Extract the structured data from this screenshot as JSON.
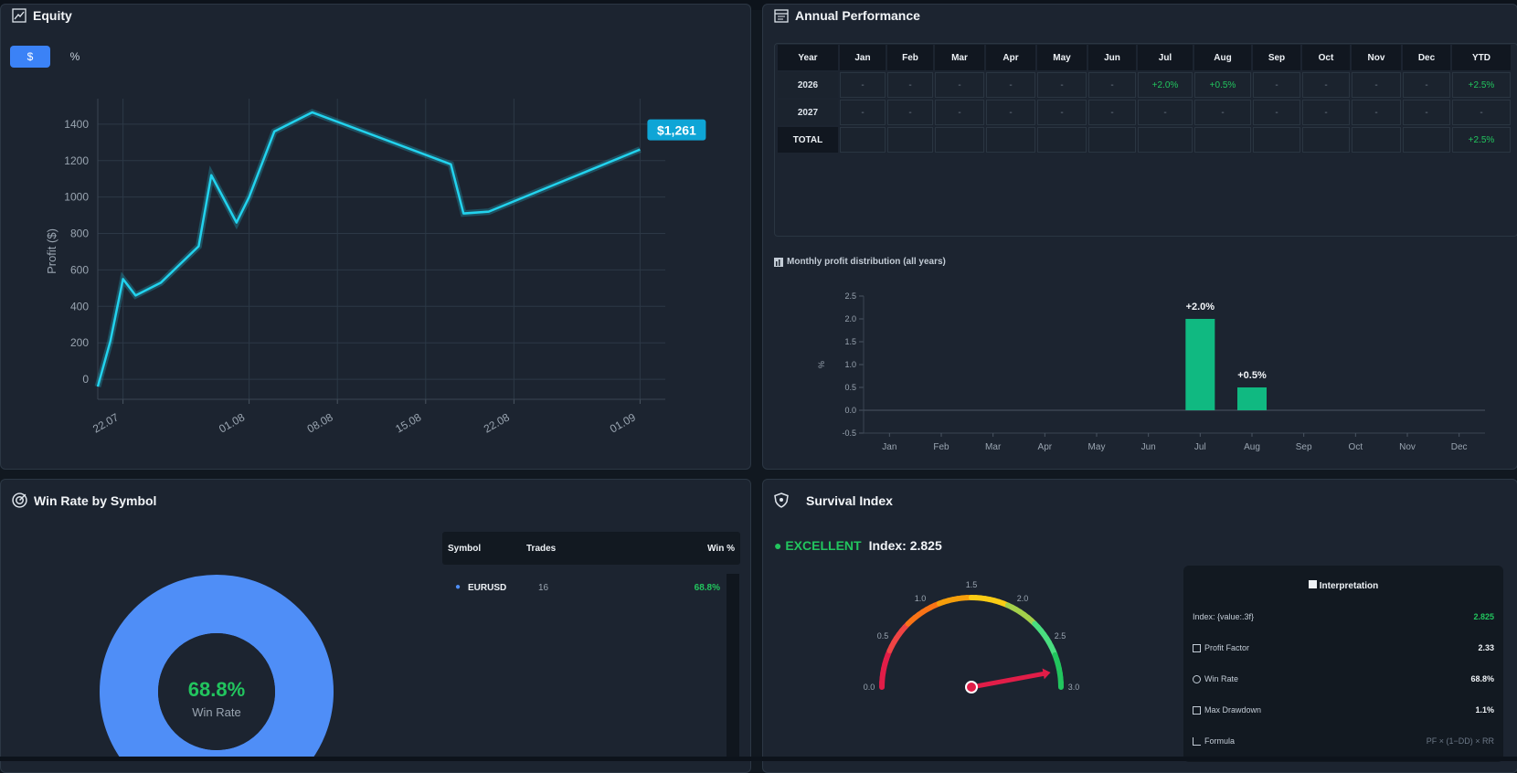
{
  "equity": {
    "title": "Equity",
    "toggle_dollar": "$",
    "toggle_percent": "%",
    "ylabel": "Profit ($)",
    "last_value_label": "$1,261"
  },
  "annual": {
    "title": "Annual Performance",
    "headers": [
      "Year",
      "Jan",
      "Feb",
      "Mar",
      "Apr",
      "May",
      "Jun",
      "Jul",
      "Aug",
      "Sep",
      "Oct",
      "Nov",
      "Dec",
      "YTD"
    ],
    "rows": [
      [
        "2026",
        "-",
        "-",
        "-",
        "-",
        "-",
        "-",
        "+2.0%",
        "+0.5%",
        "-",
        "-",
        "-",
        "-",
        "+2.5%"
      ],
      [
        "2027",
        "-",
        "-",
        "-",
        "-",
        "-",
        "-",
        "-",
        "-",
        "-",
        "-",
        "-",
        "-",
        "-"
      ],
      [
        "TOTAL",
        "",
        "",
        "",
        "",
        "",
        "",
        "",
        "",
        "",
        "",
        "",
        "",
        "+2.5%"
      ]
    ],
    "dist_title": "Monthly profit distribution (all years)"
  },
  "chart_data": [
    {
      "type": "line",
      "title": "",
      "xlabel": "",
      "ylabel": "Profit ($)",
      "xticks": [
        "22.07",
        "01.08",
        "08.08",
        "15.08",
        "22.08",
        "01.09"
      ],
      "yticks": [
        0,
        200,
        400,
        600,
        800,
        1000,
        1200,
        1400
      ],
      "ylim": [
        -110,
        1540
      ],
      "x": [
        "2025-07-20",
        "2025-07-21",
        "2025-07-22",
        "2025-07-23",
        "2025-07-25",
        "2025-07-28",
        "2025-07-29",
        "2025-07-31",
        "2025-08-01",
        "2025-08-03",
        "2025-08-06",
        "2025-08-17",
        "2025-08-18",
        "2025-08-20",
        "2025-09-01"
      ],
      "series": [
        {
          "values": [
            -40,
            210,
            550,
            460,
            530,
            730,
            1120,
            860,
            1000,
            1360,
            1465,
            1180,
            910,
            920,
            1261
          ]
        }
      ],
      "grid": true,
      "last_value_label": "$1,261"
    },
    {
      "type": "bar",
      "title": "Monthly profit distribution (all years)",
      "xlabel": "",
      "ylabel": "%",
      "categories": [
        "Jan",
        "Feb",
        "Mar",
        "Apr",
        "May",
        "Jun",
        "Jul",
        "Aug",
        "Sep",
        "Oct",
        "Nov",
        "Dec"
      ],
      "values": [
        0,
        0,
        0,
        0,
        0,
        0,
        2.0,
        0.5,
        0,
        0,
        0,
        0
      ],
      "data_labels": {
        "Jul": "+2.0%",
        "Aug": "+0.5%"
      },
      "yticks": [
        -0.5,
        0.0,
        0.5,
        1.0,
        1.5,
        2.0,
        2.5
      ],
      "ylim": [
        -0.5,
        2.5
      ]
    },
    {
      "type": "pie",
      "title": "Win Rate by Symbol",
      "categories": [
        "EURUSD"
      ],
      "values": [
        16
      ],
      "center_value": "68.8%",
      "center_label": "Win Rate"
    }
  ],
  "winrate": {
    "title": "Win Rate by Symbol",
    "center_value": "68.8%",
    "center_label": "Win Rate",
    "columns": [
      "Symbol",
      "Trades",
      "Win %"
    ],
    "rows": [
      {
        "symbol": "EURUSD",
        "trades": "16",
        "win": "68.8%"
      }
    ],
    "colors": {
      "donut": "#4f8ef7",
      "win": "#22c55e"
    }
  },
  "survival": {
    "title": "Survival Index",
    "status": "● EXCELLENT",
    "index_label": "Index: 2.825",
    "gauge_value": 2.825,
    "gauge_ticks": [
      "0.0",
      "0.5",
      "1.0",
      "1.5",
      "2.0",
      "2.5",
      "3.0"
    ],
    "interp_title": "Interpretation",
    "interp_rows": [
      {
        "label": "Index: {value:.3f}",
        "value": "2.825",
        "icon": "none"
      },
      {
        "label": "Profit Factor",
        "value": "2.33",
        "icon": "bar-chart-icon"
      },
      {
        "label": "Win Rate",
        "value": "68.8%",
        "icon": "target-icon"
      },
      {
        "label": "Max Drawdown",
        "value": "1.1%",
        "icon": "drawdown-icon"
      },
      {
        "label": "Formula",
        "value": "PF × (1−DD) × RR",
        "icon": "formula-icon"
      }
    ]
  },
  "colors": {
    "accent": "#3b82f6",
    "line": "#22d3ee",
    "bars": "#10b981",
    "positive": "#22c55e",
    "excellent": "#22c55e",
    "needle": "#e11d48"
  }
}
